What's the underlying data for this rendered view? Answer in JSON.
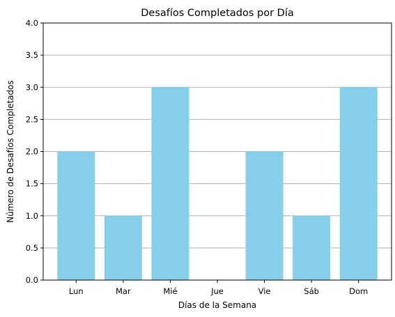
{
  "chart_data": {
    "type": "bar",
    "title": "Desafíos Completados por Día",
    "xlabel": "Días de la Semana",
    "ylabel": "Número de Desafíos Completados",
    "categories": [
      "Lun",
      "Mar",
      "Mié",
      "Jue",
      "Vie",
      "Sáb",
      "Dom"
    ],
    "values": [
      2,
      1,
      3,
      0,
      2,
      1,
      3
    ],
    "ylim": [
      0,
      4
    ],
    "yticks": [
      0.0,
      0.5,
      1.0,
      1.5,
      2.0,
      2.5,
      3.0,
      3.5,
      4.0
    ],
    "grid": "horizontal",
    "bar_color": "#87ceeb",
    "grid_color": "#b0b0b0"
  }
}
